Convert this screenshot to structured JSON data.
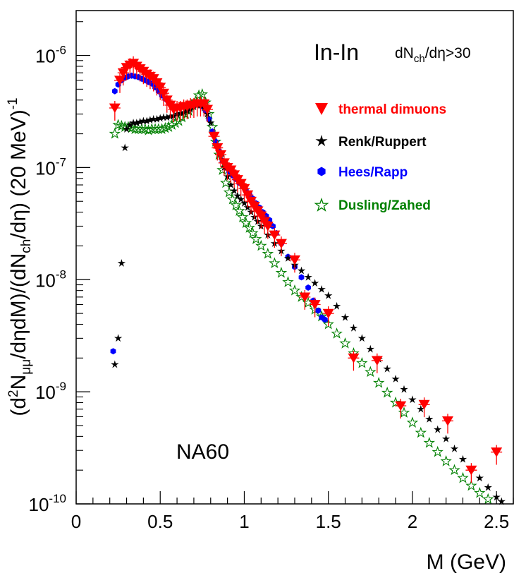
{
  "chart_data": {
    "type": "scatter",
    "title": "In-In",
    "cut_label": "dN",
    "cut_sub": "ch",
    "cut_rest": "/dη>30",
    "experiment": "NA60",
    "xlabel": "M (GeV)",
    "ylabel_parts": {
      "p1": "(d",
      "sup2": "2",
      "p2": "N",
      "sub_mumu": "μμ",
      "p3": "/dηdM)/(dN",
      "sub_ch": "ch",
      "p4": "/dη) (20 MeV)",
      "sup_m1": "-1"
    },
    "xlim": [
      0,
      2.6
    ],
    "ylim_log10": [
      -10,
      -5.6
    ],
    "x_ticks": [
      {
        "v": 0,
        "label": "0"
      },
      {
        "v": 0.5,
        "label": "0.5"
      },
      {
        "v": 1,
        "label": "1"
      },
      {
        "v": 1.5,
        "label": "1.5"
      },
      {
        "v": 2,
        "label": "2"
      },
      {
        "v": 2.5,
        "label": "2.5"
      }
    ],
    "y_ticks": [
      {
        "exp": -10,
        "base": "10",
        "sup": "-10"
      },
      {
        "exp": -9,
        "base": "10",
        "sup": "-9"
      },
      {
        "exp": -8,
        "base": "10",
        "sup": "-8"
      },
      {
        "exp": -7,
        "base": "10",
        "sup": "-7"
      },
      {
        "exp": -6,
        "base": "10",
        "sup": "-6"
      }
    ],
    "series": [
      {
        "name": "thermal dimuons",
        "marker": "triangle-down",
        "color": "#ff0000",
        "points": [
          [
            0.23,
            3.4e-07
          ],
          [
            0.26,
            6e-07
          ],
          [
            0.28,
            7e-07
          ],
          [
            0.3,
            7.8e-07
          ],
          [
            0.32,
            8.2e-07
          ],
          [
            0.34,
            8.5e-07
          ],
          [
            0.36,
            8e-07
          ],
          [
            0.38,
            7.6e-07
          ],
          [
            0.4,
            7.2e-07
          ],
          [
            0.42,
            6.8e-07
          ],
          [
            0.44,
            6.5e-07
          ],
          [
            0.46,
            6.2e-07
          ],
          [
            0.48,
            5.7e-07
          ],
          [
            0.5,
            5.2e-07
          ],
          [
            0.52,
            4.6e-07
          ],
          [
            0.54,
            4e-07
          ],
          [
            0.56,
            3.6e-07
          ],
          [
            0.58,
            3.3e-07
          ],
          [
            0.6,
            3.4e-07
          ],
          [
            0.62,
            3.4e-07
          ],
          [
            0.64,
            3.5e-07
          ],
          [
            0.66,
            3.5e-07
          ],
          [
            0.68,
            3.6e-07
          ],
          [
            0.7,
            3.6e-07
          ],
          [
            0.72,
            3.7e-07
          ],
          [
            0.74,
            3.7e-07
          ],
          [
            0.76,
            3.7e-07
          ],
          [
            0.78,
            3.3e-07
          ],
          [
            0.82,
            1.9e-07
          ],
          [
            0.84,
            1.5e-07
          ],
          [
            0.86,
            1.3e-07
          ],
          [
            0.88,
            1.1e-07
          ],
          [
            0.9,
            1e-07
          ],
          [
            0.92,
            9.5e-08
          ],
          [
            0.94,
            8.6e-08
          ],
          [
            0.96,
            7.8e-08
          ],
          [
            0.98,
            7.2e-08
          ],
          [
            1.0,
            6.5e-08
          ],
          [
            1.02,
            5.7e-08
          ],
          [
            1.04,
            5e-08
          ],
          [
            1.06,
            4.5e-08
          ],
          [
            1.08,
            4.1e-08
          ],
          [
            1.1,
            3.7e-08
          ],
          [
            1.12,
            3.3e-08
          ],
          [
            1.14,
            3e-08
          ],
          [
            1.18,
            2.5e-08
          ],
          [
            1.22,
            2.1e-08
          ],
          [
            1.3,
            1.5e-08
          ],
          [
            1.36,
            7e-09
          ],
          [
            1.42,
            6e-09
          ],
          [
            1.5,
            5e-09
          ],
          [
            1.65,
            2e-09
          ],
          [
            1.79,
            1.9e-09
          ],
          [
            1.93,
            7.5e-10
          ],
          [
            2.07,
            7.7e-10
          ],
          [
            2.21,
            5.5e-10
          ],
          [
            2.35,
            2e-10
          ],
          [
            2.5,
            2.9e-10
          ]
        ]
      },
      {
        "name": "Renk/Ruppert",
        "marker": "star",
        "color": "#000000",
        "points": [
          [
            0.23,
            1.75e-09
          ],
          [
            0.25,
            3e-09
          ],
          [
            0.27,
            1.4e-08
          ],
          [
            0.29,
            1.5e-07
          ],
          [
            0.3,
            2.2e-07
          ],
          [
            0.32,
            2.4e-07
          ],
          [
            0.34,
            2.5e-07
          ],
          [
            0.36,
            2.5e-07
          ],
          [
            0.38,
            2.55e-07
          ],
          [
            0.4,
            2.6e-07
          ],
          [
            0.42,
            2.6e-07
          ],
          [
            0.44,
            2.65e-07
          ],
          [
            0.46,
            2.7e-07
          ],
          [
            0.48,
            2.7e-07
          ],
          [
            0.5,
            2.75e-07
          ],
          [
            0.52,
            2.8e-07
          ],
          [
            0.54,
            2.8e-07
          ],
          [
            0.56,
            2.85e-07
          ],
          [
            0.58,
            2.9e-07
          ],
          [
            0.6,
            3e-07
          ],
          [
            0.62,
            3.05e-07
          ],
          [
            0.64,
            3.1e-07
          ],
          [
            0.66,
            3.2e-07
          ],
          [
            0.68,
            3.3e-07
          ],
          [
            0.7,
            3.5e-07
          ],
          [
            0.72,
            3.6e-07
          ],
          [
            0.74,
            3.6e-07
          ],
          [
            0.76,
            3.4e-07
          ],
          [
            0.78,
            3e-07
          ],
          [
            0.8,
            2.5e-07
          ],
          [
            0.82,
            1.95e-07
          ],
          [
            0.84,
            1.6e-07
          ],
          [
            0.86,
            1.25e-07
          ],
          [
            0.88,
            1e-07
          ],
          [
            0.9,
            8.3e-08
          ],
          [
            0.92,
            7e-08
          ],
          [
            0.94,
            6.2e-08
          ],
          [
            0.96,
            5.6e-08
          ],
          [
            0.98,
            5.2e-08
          ],
          [
            1.0,
            4.8e-08
          ],
          [
            1.02,
            4.4e-08
          ],
          [
            1.04,
            4e-08
          ],
          [
            1.06,
            3.6e-08
          ],
          [
            1.08,
            3.3e-08
          ],
          [
            1.1,
            3e-08
          ],
          [
            1.14,
            2.5e-08
          ],
          [
            1.18,
            2.1e-08
          ],
          [
            1.22,
            1.8e-08
          ],
          [
            1.26,
            1.55e-08
          ],
          [
            1.3,
            1.35e-08
          ],
          [
            1.34,
            1.2e-08
          ],
          [
            1.38,
            1.05e-08
          ],
          [
            1.42,
            9.3e-09
          ],
          [
            1.46,
            8.2e-09
          ],
          [
            1.5,
            7.2e-09
          ],
          [
            1.55,
            5.8e-09
          ],
          [
            1.6,
            4.6e-09
          ],
          [
            1.65,
            3.7e-09
          ],
          [
            1.7,
            3e-09
          ],
          [
            1.75,
            2.4e-09
          ],
          [
            1.8,
            1.95e-09
          ],
          [
            1.85,
            1.6e-09
          ],
          [
            1.9,
            1.3e-09
          ],
          [
            1.95,
            1.05e-09
          ],
          [
            2.0,
            8.5e-10
          ],
          [
            2.05,
            7e-10
          ],
          [
            2.1,
            5.7e-10
          ],
          [
            2.15,
            4.6e-10
          ],
          [
            2.2,
            3.8e-10
          ],
          [
            2.25,
            3.1e-10
          ],
          [
            2.3,
            2.5e-10
          ],
          [
            2.35,
            2.05e-10
          ],
          [
            2.4,
            1.7e-10
          ],
          [
            2.45,
            1.4e-10
          ],
          [
            2.5,
            1.15e-10
          ],
          [
            2.53,
            1.05e-10
          ]
        ]
      },
      {
        "name": "Hees/Rapp",
        "marker": "hexagon",
        "color": "#0000ff",
        "points": [
          [
            0.22,
            2.3e-09
          ],
          [
            0.23,
            4.8e-07
          ],
          [
            0.25,
            5.5e-07
          ],
          [
            0.27,
            6e-07
          ],
          [
            0.29,
            6.3e-07
          ],
          [
            0.31,
            6.5e-07
          ],
          [
            0.33,
            6.6e-07
          ],
          [
            0.35,
            6.5e-07
          ],
          [
            0.37,
            6.4e-07
          ],
          [
            0.39,
            6.2e-07
          ],
          [
            0.41,
            6e-07
          ],
          [
            0.43,
            5.8e-07
          ],
          [
            0.45,
            5.6e-07
          ],
          [
            0.47,
            5.2e-07
          ],
          [
            0.49,
            4.8e-07
          ],
          [
            0.51,
            4.4e-07
          ],
          [
            0.53,
            4.1e-07
          ],
          [
            0.55,
            3.8e-07
          ],
          [
            0.57,
            3.6e-07
          ],
          [
            0.59,
            3.5e-07
          ],
          [
            0.61,
            3.5e-07
          ],
          [
            0.63,
            3.5e-07
          ],
          [
            0.65,
            3.6e-07
          ],
          [
            0.67,
            3.6e-07
          ],
          [
            0.69,
            3.7e-07
          ],
          [
            0.71,
            3.7e-07
          ],
          [
            0.73,
            3.7e-07
          ],
          [
            0.75,
            3.5e-07
          ],
          [
            0.77,
            3.2e-07
          ],
          [
            0.79,
            2.7e-07
          ],
          [
            0.81,
            2.1e-07
          ],
          [
            0.83,
            1.7e-07
          ],
          [
            0.85,
            1.4e-07
          ],
          [
            0.87,
            1.15e-07
          ],
          [
            0.89,
            1e-07
          ],
          [
            0.91,
            9.2e-08
          ],
          [
            0.93,
            8.5e-08
          ],
          [
            0.95,
            7.9e-08
          ],
          [
            0.97,
            7.3e-08
          ],
          [
            0.99,
            6.8e-08
          ],
          [
            1.01,
            6.3e-08
          ],
          [
            1.03,
            5.8e-08
          ],
          [
            1.05,
            5.3e-08
          ],
          [
            1.07,
            4.8e-08
          ],
          [
            1.09,
            4.4e-08
          ],
          [
            1.11,
            4e-08
          ],
          [
            1.13,
            3.7e-08
          ],
          [
            1.15,
            3.4e-08
          ],
          [
            1.17,
            3e-08
          ],
          [
            1.19,
            2.6e-08
          ],
          [
            1.22,
            2.1e-08
          ],
          [
            1.26,
            1.6e-08
          ],
          [
            1.3,
            1.3e-08
          ],
          [
            1.34,
            1.05e-08
          ],
          [
            1.38,
            8.5e-09
          ],
          [
            1.41,
            6.5e-09
          ],
          [
            1.44,
            5.3e-09
          ],
          [
            1.46,
            4.6e-09
          ],
          [
            1.48,
            4.4e-09
          ]
        ]
      },
      {
        "name": "Dusling/Zahed",
        "marker": "star-open",
        "color": "#008000",
        "points": [
          [
            0.23,
            2e-07
          ],
          [
            0.25,
            2.4e-07
          ],
          [
            0.27,
            2.35e-07
          ],
          [
            0.29,
            2.3e-07
          ],
          [
            0.31,
            2.3e-07
          ],
          [
            0.33,
            2.25e-07
          ],
          [
            0.35,
            2.2e-07
          ],
          [
            0.37,
            2.2e-07
          ],
          [
            0.39,
            2.2e-07
          ],
          [
            0.41,
            2.2e-07
          ],
          [
            0.43,
            2.15e-07
          ],
          [
            0.45,
            2.2e-07
          ],
          [
            0.47,
            2.2e-07
          ],
          [
            0.49,
            2.2e-07
          ],
          [
            0.51,
            2.2e-07
          ],
          [
            0.53,
            2.25e-07
          ],
          [
            0.55,
            2.3e-07
          ],
          [
            0.57,
            2.4e-07
          ],
          [
            0.59,
            2.5e-07
          ],
          [
            0.61,
            2.6e-07
          ],
          [
            0.63,
            2.8e-07
          ],
          [
            0.65,
            3e-07
          ],
          [
            0.67,
            3.2e-07
          ],
          [
            0.69,
            3.6e-07
          ],
          [
            0.71,
            3.9e-07
          ],
          [
            0.73,
            4.4e-07
          ],
          [
            0.75,
            4.5e-07
          ],
          [
            0.77,
            3.8e-07
          ],
          [
            0.79,
            3e-07
          ],
          [
            0.81,
            2.3e-07
          ],
          [
            0.83,
            1.7e-07
          ],
          [
            0.85,
            1.3e-07
          ],
          [
            0.87,
            9.5e-08
          ],
          [
            0.89,
            7.3e-08
          ],
          [
            0.91,
            6e-08
          ],
          [
            0.93,
            5.2e-08
          ],
          [
            0.95,
            4.6e-08
          ],
          [
            0.97,
            4.1e-08
          ],
          [
            0.99,
            3.6e-08
          ],
          [
            1.01,
            3.2e-08
          ],
          [
            1.03,
            2.9e-08
          ],
          [
            1.05,
            2.6e-08
          ],
          [
            1.07,
            2.3e-08
          ],
          [
            1.1,
            2e-08
          ],
          [
            1.14,
            1.7e-08
          ],
          [
            1.18,
            1.4e-08
          ],
          [
            1.22,
            1.15e-08
          ],
          [
            1.26,
            9.5e-09
          ],
          [
            1.3,
            8e-09
          ],
          [
            1.34,
            7e-09
          ],
          [
            1.38,
            6.2e-09
          ],
          [
            1.42,
            5.4e-09
          ],
          [
            1.46,
            4.7e-09
          ],
          [
            1.5,
            4e-09
          ],
          [
            1.55,
            3.3e-09
          ],
          [
            1.6,
            2.7e-09
          ],
          [
            1.65,
            2.2e-09
          ],
          [
            1.7,
            1.8e-09
          ],
          [
            1.75,
            1.5e-09
          ],
          [
            1.8,
            1.2e-09
          ],
          [
            1.85,
            9.8e-10
          ],
          [
            1.9,
            8e-10
          ],
          [
            1.95,
            6.5e-10
          ],
          [
            2.0,
            5.3e-10
          ],
          [
            2.05,
            4.3e-10
          ],
          [
            2.1,
            3.5e-10
          ],
          [
            2.15,
            2.9e-10
          ],
          [
            2.2,
            2.4e-10
          ],
          [
            2.25,
            2e-10
          ],
          [
            2.3,
            1.7e-10
          ],
          [
            2.35,
            1.45e-10
          ],
          [
            2.4,
            1.25e-10
          ],
          [
            2.45,
            1.1e-10
          ]
        ]
      }
    ]
  }
}
